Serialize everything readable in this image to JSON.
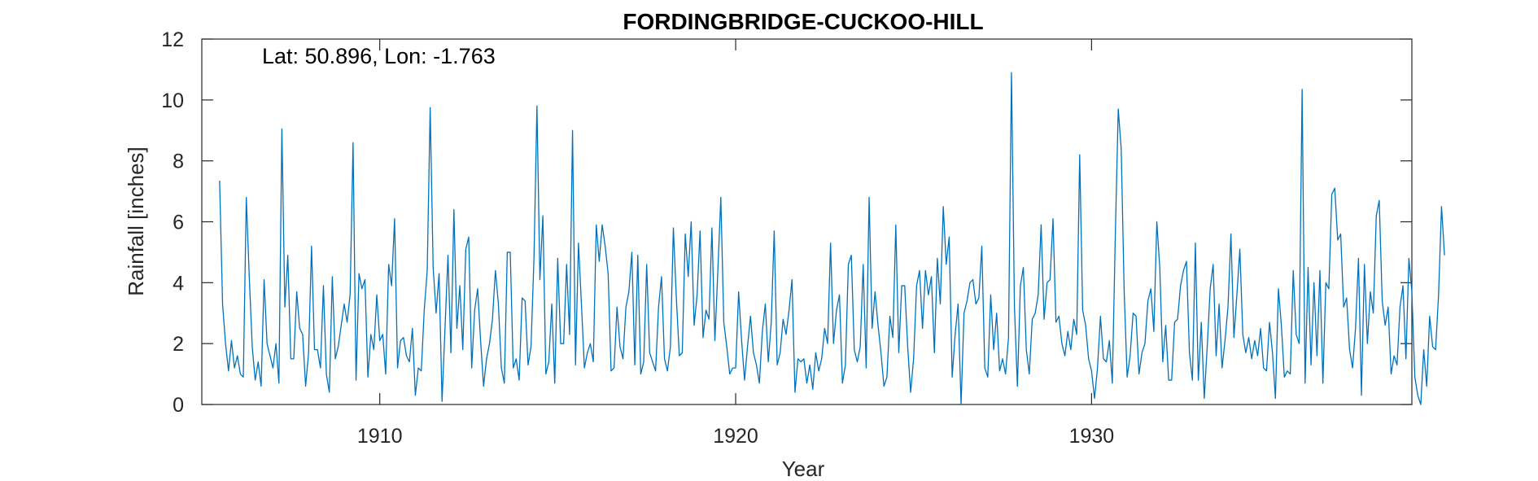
{
  "chart_data": {
    "type": "line",
    "title": "FORDINGBRIDGE-CUCKOO-HILL",
    "annotation": "Lat: 50.896, Lon: -1.763",
    "xlabel": "Year",
    "ylabel": "Rainfall [inches]",
    "xlim": [
      1905.0,
      1939.0
    ],
    "ylim": [
      0,
      12
    ],
    "xticks": [
      1910,
      1920,
      1930
    ],
    "yticks": [
      0,
      2,
      4,
      6,
      8,
      10,
      12
    ],
    "grid": false,
    "line_color": "#0072BD",
    "series": [
      {
        "start_year": 1905.5,
        "step": 0.083333,
        "values": [
          7.35,
          3.3,
          2.0,
          1.1,
          2.1,
          1.2,
          1.6,
          1.0,
          0.9,
          6.8,
          4.2,
          1.9,
          0.8,
          1.4,
          0.6,
          4.1,
          2.0,
          1.6,
          1.2,
          2.0,
          0.7,
          9.05,
          3.2,
          4.9,
          1.5,
          1.5,
          3.7,
          2.5,
          2.3,
          0.6,
          1.7,
          5.2,
          1.8,
          1.8,
          1.2,
          3.9,
          1.0,
          0.4,
          4.2,
          1.5,
          1.9,
          2.6,
          3.3,
          2.7,
          3.6,
          8.6,
          0.8,
          4.3,
          3.8,
          4.1,
          0.9,
          2.3,
          1.8,
          3.6,
          2.1,
          2.3,
          1.0,
          4.6,
          3.9,
          6.1,
          1.2,
          2.1,
          2.2,
          1.6,
          1.4,
          2.5,
          0.3,
          1.2,
          1.1,
          3.1,
          4.4,
          9.75,
          4.5,
          3.0,
          4.3,
          0.1,
          2.5,
          4.9,
          1.7,
          6.4,
          2.5,
          3.9,
          1.8,
          5.1,
          5.5,
          1.2,
          3.1,
          3.8,
          2.1,
          0.6,
          1.5,
          2.0,
          2.8,
          4.4,
          3.3,
          1.2,
          0.7,
          5.0,
          5.0,
          1.2,
          1.5,
          0.8,
          3.5,
          3.4,
          1.3,
          1.9,
          4.8,
          9.8,
          4.1,
          6.2,
          1.0,
          1.4,
          3.3,
          0.7,
          4.8,
          2.0,
          2.0,
          4.6,
          2.3,
          9.0,
          1.3,
          5.3,
          3.3,
          1.2,
          1.7,
          2.0,
          1.4,
          5.9,
          4.7,
          5.9,
          5.2,
          4.3,
          1.1,
          1.2,
          3.2,
          1.9,
          1.5,
          3.2,
          3.7,
          5.0,
          1.3,
          4.9,
          1.0,
          1.4,
          4.6,
          1.7,
          1.4,
          1.1,
          3.2,
          4.2,
          1.5,
          1.1,
          1.9,
          5.8,
          3.5,
          1.6,
          1.7,
          5.6,
          4.2,
          6.0,
          2.6,
          3.6,
          5.7,
          2.2,
          3.1,
          2.8,
          5.8,
          2.1,
          4.4,
          6.8,
          2.7,
          1.9,
          1.0,
          1.2,
          1.2,
          3.7,
          2.1,
          0.8,
          1.9,
          2.9,
          1.7,
          1.3,
          0.7,
          2.4,
          3.3,
          1.4,
          2.7,
          5.7,
          1.3,
          1.7,
          2.8,
          2.3,
          3.1,
          4.1,
          0.4,
          1.5,
          1.4,
          1.5,
          0.7,
          1.3,
          0.5,
          1.7,
          1.1,
          1.5,
          2.5,
          2.0,
          5.3,
          2.0,
          3.1,
          3.6,
          0.7,
          1.3,
          4.6,
          4.9,
          1.8,
          1.4,
          1.9,
          4.6,
          1.2,
          6.8,
          2.5,
          3.7,
          2.6,
          1.7,
          0.6,
          0.9,
          2.9,
          2.2,
          5.9,
          1.7,
          3.9,
          3.9,
          1.9,
          0.4,
          1.5,
          3.9,
          4.4,
          2.5,
          4.4,
          3.6,
          4.2,
          1.7,
          4.8,
          3.3,
          6.5,
          4.6,
          5.5,
          0.9,
          2.3,
          3.3,
          0.0,
          3.0,
          3.4,
          4.0,
          4.1,
          3.3,
          3.5,
          5.2,
          1.2,
          0.9,
          3.6,
          1.8,
          3.0,
          1.1,
          1.5,
          1.0,
          2.2,
          10.9,
          3.2,
          0.6,
          3.9,
          4.5,
          1.8,
          1.0,
          2.8,
          3.0,
          3.6,
          5.9,
          2.8,
          4.0,
          4.1,
          6.1,
          2.7,
          2.9,
          2.0,
          1.6,
          2.4,
          1.8,
          2.8,
          2.3,
          8.2,
          3.1,
          2.6,
          1.5,
          1.1,
          0.2,
          1.2,
          2.9,
          1.5,
          1.4,
          2.1,
          0.7,
          5.5,
          9.7,
          8.4,
          3.7,
          0.9,
          1.6,
          3.0,
          2.9,
          1.0,
          1.7,
          2.0,
          3.4,
          3.8,
          2.4,
          6.0,
          4.5,
          1.4,
          2.6,
          0.8,
          0.8,
          2.7,
          2.8,
          3.9,
          4.4,
          4.7,
          1.7,
          0.8,
          5.3,
          0.8,
          2.7,
          0.2,
          1.9,
          3.8,
          4.6,
          1.6,
          3.3,
          1.2,
          2.1,
          3.2,
          5.6,
          2.2,
          3.6,
          5.1,
          2.3,
          1.7,
          2.2,
          1.5,
          2.1,
          1.6,
          2.5,
          1.2,
          1.1,
          2.7,
          1.7,
          0.2,
          3.8,
          2.6,
          0.9,
          1.1,
          1.0,
          4.4,
          2.3,
          2.0,
          10.35,
          0.7,
          4.5,
          1.3,
          4.0,
          1.6,
          4.4,
          0.7,
          4.0,
          3.8,
          6.9,
          7.1,
          5.4,
          5.6,
          3.2,
          3.5,
          1.8,
          1.2,
          2.5,
          4.8,
          0.3,
          4.6,
          2.0,
          3.7,
          3.0,
          6.2,
          6.7,
          3.4,
          2.6,
          3.2,
          1.0,
          1.6,
          1.3,
          3.2,
          3.9,
          1.5,
          4.8,
          3.7,
          0.9,
          0.3,
          0.0,
          1.8,
          0.6,
          2.9,
          1.9,
          1.8,
          3.6,
          6.5,
          4.9
        ]
      }
    ]
  }
}
